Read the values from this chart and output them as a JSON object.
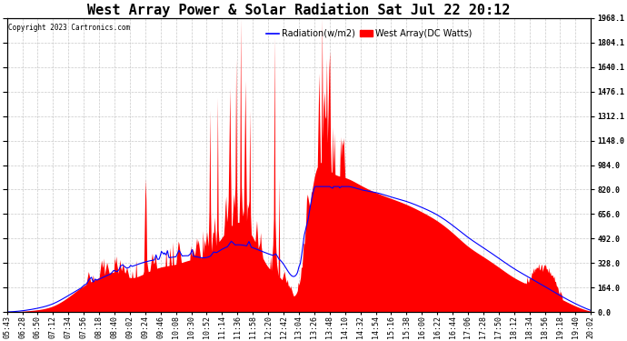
{
  "title": "West Array Power & Solar Radiation Sat Jul 22 20:12",
  "copyright": "Copyright 2023 Cartronics.com",
  "legend_radiation": "Radiation(w/m2)",
  "legend_west": "West Array(DC Watts)",
  "radiation_color": "blue",
  "west_color": "red",
  "ymin": 0.0,
  "ymax": 1968.1,
  "yticks": [
    0.0,
    164.0,
    328.0,
    492.0,
    656.0,
    820.0,
    984.0,
    1148.0,
    1312.1,
    1476.1,
    1640.1,
    1804.1,
    1968.1
  ],
  "background_color": "#ffffff",
  "grid_color": "#bbbbbb",
  "title_fontsize": 11,
  "label_fontsize": 7,
  "tick_fontsize": 6,
  "x_tick_labels": [
    "05:43",
    "06:28",
    "06:50",
    "07:12",
    "07:34",
    "07:56",
    "08:18",
    "08:40",
    "09:02",
    "09:24",
    "09:46",
    "10:08",
    "10:30",
    "10:52",
    "11:14",
    "11:36",
    "11:58",
    "12:20",
    "12:42",
    "13:04",
    "13:26",
    "13:48",
    "14:10",
    "14:32",
    "14:54",
    "15:16",
    "15:38",
    "16:00",
    "16:22",
    "16:44",
    "17:06",
    "17:28",
    "17:50",
    "18:12",
    "18:34",
    "18:56",
    "19:18",
    "19:40",
    "20:02"
  ],
  "n_ticks": 39
}
